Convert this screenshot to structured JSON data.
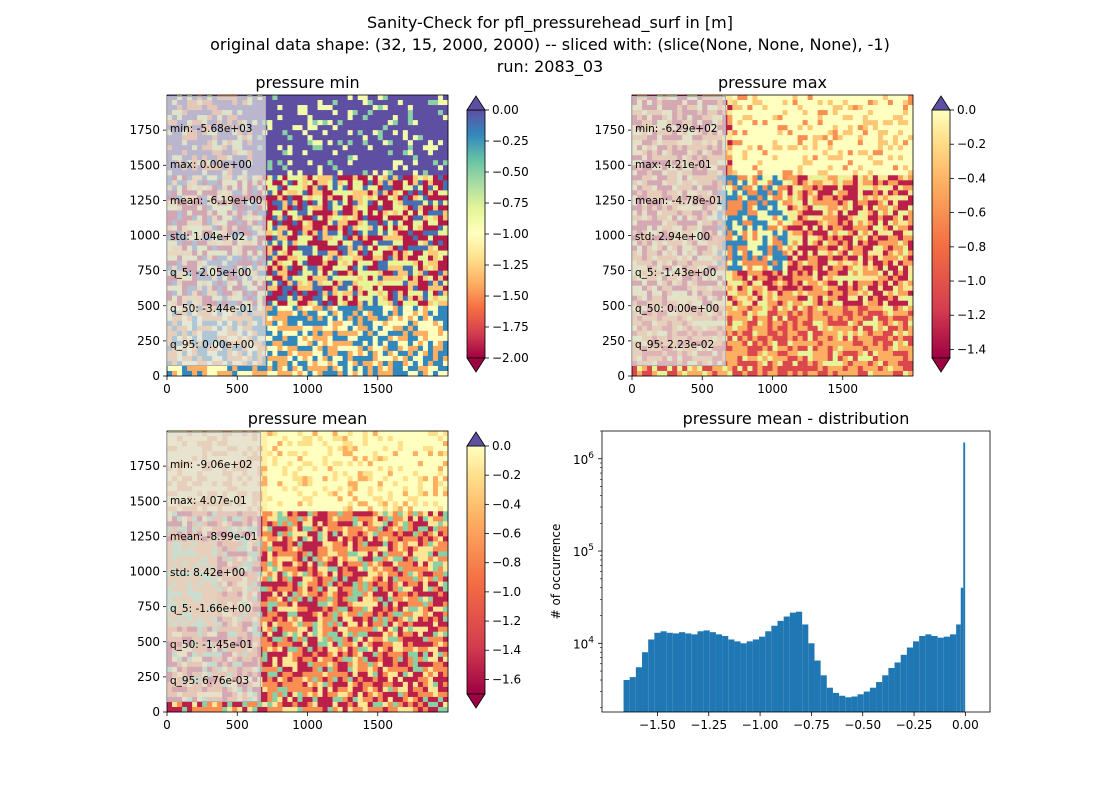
{
  "suptitle": {
    "line1": "Sanity-Check for pfl_pressurehead_surf in [m]",
    "line2": "original data shape: (32, 15, 2000, 2000) -- sliced with: (slice(None, None, None), -1)",
    "line3": "run: 2083_03"
  },
  "colormap": "Spectral",
  "chart_data": [
    {
      "type": "heatmap",
      "title": "pressure min",
      "xlim": [
        0,
        2000
      ],
      "ylim": [
        0,
        2000
      ],
      "xticks": [
        "0",
        "500",
        "1000",
        "1500"
      ],
      "yticks": [
        "0",
        "250",
        "500",
        "750",
        "1000",
        "1250",
        "1500",
        "1750"
      ],
      "colorbar": {
        "min": -2.0,
        "max": 0.0,
        "ticks": [
          "0.00",
          "−0.25",
          "−0.50",
          "−0.75",
          "−1.00",
          "−1.25",
          "−1.50",
          "−1.75",
          "−2.00"
        ],
        "extend": "both"
      },
      "stats": [
        "min: -5.68e+03",
        "max: 0.00e+00",
        "mean: -6.19e+00",
        "std: 1.04e+02",
        "q_5: -2.05e+00",
        "q_50: -3.44e-01",
        "q_95: 0.00e+00"
      ]
    },
    {
      "type": "heatmap",
      "title": "pressure max",
      "xlim": [
        0,
        2000
      ],
      "ylim": [
        0,
        2000
      ],
      "xticks": [
        "0",
        "500",
        "1000",
        "1500"
      ],
      "yticks": [
        "0",
        "250",
        "500",
        "750",
        "1000",
        "1250",
        "1500",
        "1750"
      ],
      "colorbar": {
        "min": -1.45,
        "max": 0.0,
        "ticks": [
          "0.0",
          "−0.2",
          "−0.4",
          "−0.6",
          "−0.8",
          "−1.0",
          "−1.2",
          "−1.4"
        ],
        "extend": "both"
      },
      "stats": [
        "min: -6.29e+02",
        "max: 4.21e-01",
        "mean: -4.78e-01",
        "std: 2.94e+00",
        "q_5: -1.43e+00",
        "q_50: 0.00e+00",
        "q_95: 2.23e-02"
      ]
    },
    {
      "type": "heatmap",
      "title": "pressure mean",
      "xlim": [
        0,
        2000
      ],
      "ylim": [
        0,
        2000
      ],
      "xticks": [
        "0",
        "500",
        "1000",
        "1500"
      ],
      "yticks": [
        "0",
        "250",
        "500",
        "750",
        "1000",
        "1250",
        "1500",
        "1750"
      ],
      "colorbar": {
        "min": -1.7,
        "max": 0.0,
        "ticks": [
          "0.0",
          "−0.2",
          "−0.4",
          "−0.6",
          "−0.8",
          "−1.0",
          "−1.2",
          "−1.4",
          "−1.6"
        ],
        "extend": "both"
      },
      "stats": [
        "min: -9.06e+02",
        "max: 4.07e-01",
        "mean: -8.99e-01",
        "std: 8.42e+00",
        "q_5: -1.66e+00",
        "q_50: -1.45e-01",
        "q_95: 6.76e-03"
      ]
    },
    {
      "type": "bar",
      "subtype": "histogram",
      "title": "pressure mean - distribution",
      "xlabel": "",
      "ylabel": "# of occurrence",
      "yscale": "log",
      "xlim": [
        -1.77,
        0.12
      ],
      "ylim": [
        1800,
        2000000
      ],
      "xticks": [
        "−1.50",
        "−1.25",
        "−1.00",
        "−0.75",
        "−0.50",
        "−0.25",
        "0.00"
      ],
      "yticks": [
        "10^4",
        "10^5",
        "10^6"
      ],
      "color": "#1f77b4",
      "series": [
        {
          "x": [
            -1.65,
            -1.62,
            -1.59,
            -1.56,
            -1.53,
            -1.5,
            -1.47,
            -1.44,
            -1.41,
            -1.38,
            -1.35,
            -1.32,
            -1.29,
            -1.26,
            -1.23,
            -1.2,
            -1.17,
            -1.14,
            -1.11,
            -1.08,
            -1.05,
            -1.02,
            -0.99,
            -0.96,
            -0.93,
            -0.9,
            -0.87,
            -0.84,
            -0.81,
            -0.78,
            -0.75,
            -0.72,
            -0.69,
            -0.66,
            -0.63,
            -0.6,
            -0.57,
            -0.54,
            -0.51,
            -0.48,
            -0.45,
            -0.42,
            -0.39,
            -0.36,
            -0.33,
            -0.3,
            -0.27,
            -0.24,
            -0.21,
            -0.18,
            -0.15,
            -0.12,
            -0.09,
            -0.06,
            -0.03,
            -0.015,
            -0.005
          ],
          "values": [
            4000,
            4300,
            5500,
            8000,
            11000,
            13000,
            13500,
            13000,
            12800,
            13200,
            12800,
            12500,
            13500,
            13800,
            13200,
            12500,
            12000,
            11000,
            10500,
            10000,
            10500,
            11000,
            11800,
            13500,
            15500,
            17500,
            19500,
            21500,
            22000,
            16000,
            10000,
            6500,
            4500,
            3300,
            2900,
            2700,
            2600,
            2650,
            2800,
            3000,
            3300,
            3800,
            4500,
            5400,
            6200,
            7500,
            9000,
            10500,
            12000,
            12500,
            12000,
            11500,
            11800,
            12500,
            16000,
            40000,
            1500000
          ]
        }
      ]
    }
  ]
}
